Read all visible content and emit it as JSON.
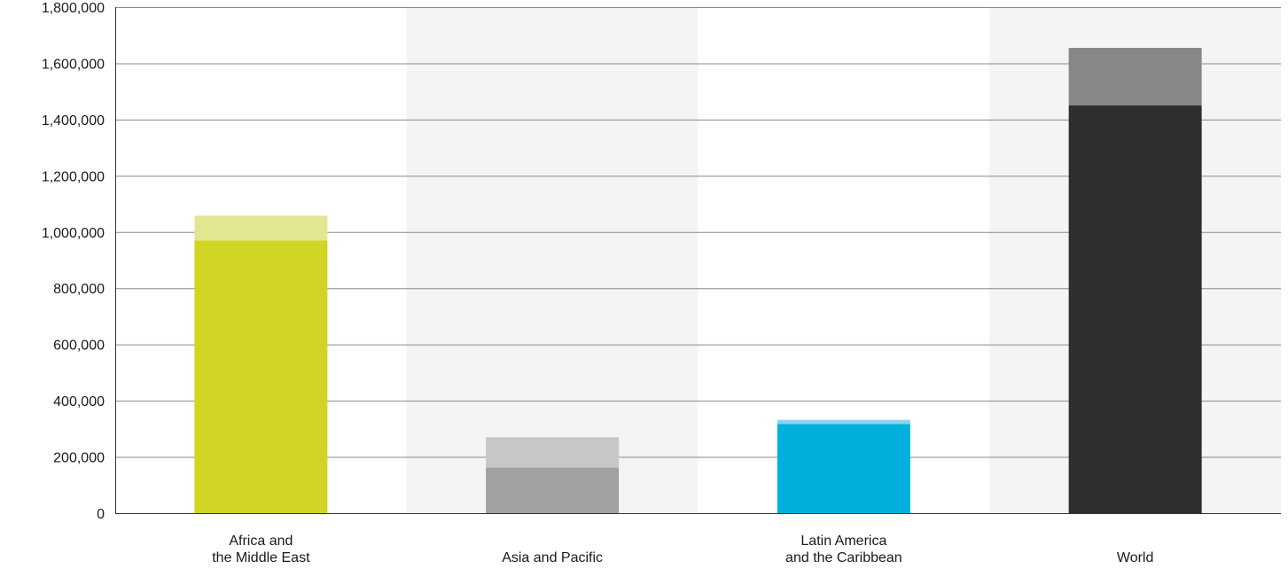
{
  "chart_data": {
    "type": "bar",
    "stacked": true,
    "title": "",
    "xlabel": "",
    "ylabel": "",
    "ylim": [
      0,
      1800000
    ],
    "y_ticks": [
      0,
      200000,
      400000,
      600000,
      800000,
      1000000,
      1200000,
      1400000,
      1600000,
      1800000
    ],
    "y_tick_labels": [
      "0",
      "200,000",
      "400,000",
      "600,000",
      "800,000",
      "1,000,000",
      "1,200,000",
      "1,400,000",
      "1,600,000",
      "1,800,000"
    ],
    "grid": true,
    "legend": "none",
    "categories": [
      {
        "line1": "Africa and",
        "line2": "the Middle East"
      },
      {
        "line1": "",
        "line2": "Asia and Pacific"
      },
      {
        "line1": "Latin America",
        "line2": "and the Caribbean"
      },
      {
        "line1": "",
        "line2": "World"
      }
    ],
    "series": [
      {
        "values": [
          970000,
          162000,
          317000,
          1450000
        ]
      },
      {
        "values": [
          88000,
          108000,
          15000,
          205000
        ]
      }
    ],
    "colors": {
      "base": [
        "#cfd522",
        "#a0a1a3",
        "#00b0dc",
        "#2d2e30"
      ],
      "top": [
        "#e3e690",
        "#c6c7c9",
        "#8dd3ec",
        "#878786"
      ],
      "band": "#f4f4f4",
      "grid": "#8a8a8a",
      "axis": "#333333"
    }
  }
}
